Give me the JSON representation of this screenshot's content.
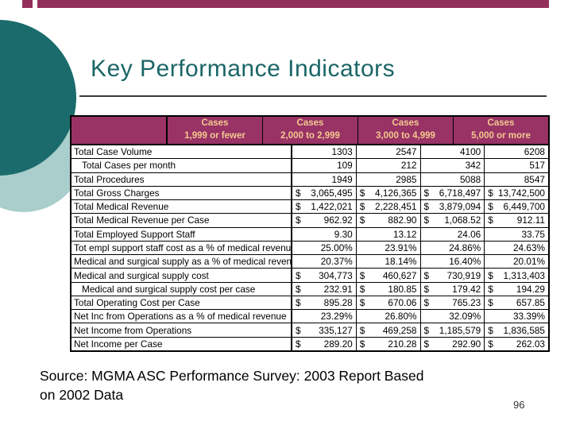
{
  "slide": {
    "title": "Key Performance Indicators",
    "source_line1": "Source: MGMA ASC Performance Survey: 2003 Report Based",
    "source_line2": "on 2002 Data",
    "page_number": "96"
  },
  "colors": {
    "header_bg": "#993366",
    "header_text": "#f3c98f",
    "title_color": "#1b6667",
    "circle_dark": "#1b6b6c",
    "circle_light": "#a9cecc",
    "top_bar": "#93305a"
  },
  "table": {
    "type": "table",
    "columns": [
      {
        "line1": "Cases",
        "line2": "1,999 or fewer"
      },
      {
        "line1": "Cases",
        "line2": "2,000 to 2,999"
      },
      {
        "line1": "Cases",
        "line2": "3,000 to 4,999"
      },
      {
        "line1": "Cases",
        "line2": "5,000 or more"
      }
    ],
    "rows": [
      {
        "label": "Total Case Volume",
        "indent": false,
        "currency": false,
        "values": [
          "1303",
          "2547",
          "4100",
          "6208"
        ]
      },
      {
        "label": "Total Cases per month",
        "indent": true,
        "currency": false,
        "values": [
          "109",
          "212",
          "342",
          "517"
        ]
      },
      {
        "label": "Total Procedures",
        "indent": false,
        "currency": false,
        "values": [
          "1949",
          "2985",
          "5088",
          "8547"
        ]
      },
      {
        "label": "Total Gross Charges",
        "indent": false,
        "currency": true,
        "values": [
          "3,065,495",
          "4,126,365",
          "6,718,497",
          "13,742,500"
        ]
      },
      {
        "label": "Total Medical Revenue",
        "indent": false,
        "currency": true,
        "values": [
          "1,422,021",
          "2,228,451",
          "3,879,094",
          "6,449,700"
        ]
      },
      {
        "label": "Total Medical Revenue per Case",
        "indent": false,
        "currency": true,
        "values": [
          "962.92",
          "882.90",
          "1,068.52",
          "912.11"
        ]
      },
      {
        "label": "Total Employed Support Staff",
        "indent": false,
        "currency": false,
        "values": [
          "9.30",
          "13.12",
          "24.06",
          "33.75"
        ]
      },
      {
        "label": "Tot empl support staff cost as a % of medical revenue",
        "indent": false,
        "currency": false,
        "values": [
          "25.00%",
          "23.91%",
          "24.86%",
          "24.63%"
        ]
      },
      {
        "label": "Medical and surgical supply as a % of medical revenue",
        "indent": false,
        "currency": false,
        "values": [
          "20.37%",
          "18.14%",
          "16.40%",
          "20.01%"
        ]
      },
      {
        "label": "Medical and surgical supply cost",
        "indent": false,
        "currency": true,
        "values": [
          "304,773",
          "460,627",
          "730,919",
          "1,313,403"
        ]
      },
      {
        "label": "Medical and surgical supply cost per case",
        "indent": true,
        "currency": true,
        "values": [
          "232.91",
          "180.85",
          "179.42",
          "194.29"
        ]
      },
      {
        "label": "Total Operating Cost per Case",
        "indent": false,
        "currency": true,
        "values": [
          "895.28",
          "670.06",
          "765.23",
          "657.85"
        ]
      },
      {
        "label": "Net Inc from Operations as a % of medical revenue",
        "indent": false,
        "currency": false,
        "values": [
          "23.29%",
          "26.80%",
          "32.09%",
          "33.39%"
        ]
      },
      {
        "label": "Net Income from Operations",
        "indent": false,
        "currency": true,
        "values": [
          "335,127",
          "469,258",
          "1,185,579",
          "1,836,585"
        ]
      },
      {
        "label": "Net Income per Case",
        "indent": false,
        "currency": true,
        "values": [
          "289.20",
          "210.28",
          "292.90",
          "262.03"
        ]
      }
    ]
  }
}
